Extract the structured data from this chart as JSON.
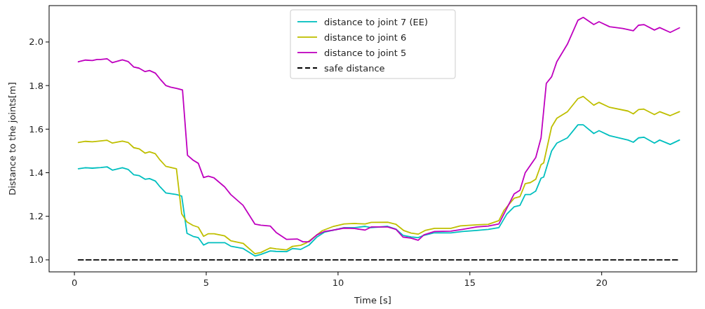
{
  "chart_data": {
    "type": "line",
    "xlabel": "Time [s]",
    "ylabel": "Distance to the joints[m]",
    "xlim": [
      -0.96,
      23.6
    ],
    "ylim": [
      0.945,
      2.167
    ],
    "xticks": [
      0,
      5,
      10,
      15,
      20
    ],
    "yticks": [
      {
        "value": 1.0,
        "label": "1.0"
      },
      {
        "value": 1.2,
        "label": "1.2"
      },
      {
        "value": 1.4,
        "label": "1.4"
      },
      {
        "value": 1.6,
        "label": "1.6"
      },
      {
        "value": 1.8,
        "label": "1.8"
      },
      {
        "value": 2.0,
        "label": "2.0"
      }
    ],
    "grid": false,
    "legend": "top",
    "marker": "none",
    "series": [
      {
        "name": "distance to joint 7 (EE)",
        "color": "#00bfbf",
        "line_style": "solid",
        "x": [
          0.15,
          0.42,
          0.68,
          1.0,
          1.24,
          1.44,
          1.82,
          2.04,
          2.25,
          2.45,
          2.68,
          2.85,
          3.07,
          3.25,
          3.47,
          3.87,
          4.07,
          4.27,
          4.5,
          4.7,
          4.9,
          5.08,
          5.3,
          5.7,
          5.93,
          6.4,
          6.85,
          7.07,
          7.43,
          7.65,
          8.05,
          8.27,
          8.58,
          8.9,
          9.2,
          9.48,
          9.83,
          10.23,
          10.63,
          11.03,
          11.26,
          11.88,
          12.2,
          12.46,
          12.77,
          13.04,
          13.26,
          13.66,
          14.28,
          14.72,
          15.26,
          15.7,
          16.1,
          16.4,
          16.68,
          16.9,
          17.1,
          17.3,
          17.5,
          17.7,
          17.8,
          18.1,
          18.3,
          18.7,
          19.1,
          19.3,
          19.7,
          19.9,
          20.3,
          21.0,
          21.2,
          21.4,
          21.6,
          22.0,
          22.2,
          22.6,
          22.95
        ],
        "values": [
          1.418,
          1.423,
          1.421,
          1.424,
          1.427,
          1.412,
          1.423,
          1.415,
          1.391,
          1.387,
          1.37,
          1.373,
          1.362,
          1.335,
          1.307,
          1.3,
          1.293,
          1.122,
          1.108,
          1.102,
          1.068,
          1.079,
          1.079,
          1.079,
          1.063,
          1.052,
          1.018,
          1.025,
          1.041,
          1.039,
          1.038,
          1.052,
          1.048,
          1.068,
          1.105,
          1.127,
          1.137,
          1.148,
          1.148,
          1.154,
          1.148,
          1.154,
          1.141,
          1.113,
          1.105,
          1.102,
          1.113,
          1.125,
          1.124,
          1.13,
          1.135,
          1.14,
          1.148,
          1.21,
          1.244,
          1.25,
          1.3,
          1.3,
          1.316,
          1.375,
          1.38,
          1.5,
          1.536,
          1.56,
          1.62,
          1.62,
          1.58,
          1.593,
          1.57,
          1.55,
          1.54,
          1.56,
          1.563,
          1.536,
          1.55,
          1.53,
          1.55
        ]
      },
      {
        "name": "distance to joint 6",
        "color": "#bfbf00",
        "line_style": "solid",
        "x": [
          0.15,
          0.42,
          0.68,
          1.0,
          1.24,
          1.44,
          1.82,
          2.04,
          2.25,
          2.45,
          2.68,
          2.85,
          3.07,
          3.25,
          3.47,
          3.87,
          4.07,
          4.27,
          4.5,
          4.7,
          4.9,
          5.08,
          5.3,
          5.7,
          5.93,
          6.4,
          6.85,
          7.07,
          7.43,
          7.65,
          8.05,
          8.27,
          8.58,
          8.8,
          9.05,
          9.4,
          9.83,
          10.23,
          10.63,
          11.03,
          11.26,
          11.88,
          12.2,
          12.5,
          12.77,
          13.04,
          13.3,
          13.66,
          14.28,
          14.64,
          15.26,
          15.7,
          16.1,
          16.3,
          16.68,
          16.9,
          17.1,
          17.3,
          17.5,
          17.7,
          17.8,
          18.1,
          18.3,
          18.7,
          19.1,
          19.3,
          19.7,
          19.9,
          20.3,
          21.0,
          21.2,
          21.4,
          21.6,
          22.0,
          22.2,
          22.6,
          22.95
        ],
        "values": [
          1.539,
          1.544,
          1.542,
          1.546,
          1.549,
          1.536,
          1.545,
          1.539,
          1.515,
          1.51,
          1.49,
          1.496,
          1.487,
          1.458,
          1.429,
          1.418,
          1.211,
          1.174,
          1.158,
          1.15,
          1.108,
          1.12,
          1.12,
          1.11,
          1.088,
          1.076,
          1.028,
          1.034,
          1.055,
          1.051,
          1.046,
          1.062,
          1.067,
          1.078,
          1.1,
          1.134,
          1.154,
          1.165,
          1.167,
          1.165,
          1.172,
          1.173,
          1.163,
          1.134,
          1.123,
          1.118,
          1.135,
          1.145,
          1.145,
          1.156,
          1.161,
          1.163,
          1.18,
          1.228,
          1.283,
          1.29,
          1.35,
          1.355,
          1.37,
          1.437,
          1.445,
          1.61,
          1.65,
          1.68,
          1.74,
          1.75,
          1.71,
          1.723,
          1.7,
          1.683,
          1.67,
          1.69,
          1.692,
          1.667,
          1.68,
          1.662,
          1.68
        ]
      },
      {
        "name": "distance to joint 5",
        "color": "#bf00bf",
        "line_style": "solid",
        "x": [
          0.15,
          0.42,
          0.68,
          0.86,
          1.0,
          1.24,
          1.44,
          1.82,
          2.04,
          2.25,
          2.45,
          2.68,
          2.85,
          3.07,
          3.25,
          3.47,
          3.65,
          3.87,
          4.1,
          4.29,
          4.5,
          4.7,
          4.9,
          5.08,
          5.3,
          5.7,
          5.93,
          6.4,
          6.85,
          7.07,
          7.43,
          7.65,
          8.05,
          8.45,
          8.67,
          8.9,
          9.2,
          9.48,
          9.83,
          10.23,
          10.63,
          11.03,
          11.26,
          11.88,
          12.2,
          12.46,
          12.77,
          13.04,
          13.26,
          13.66,
          14.28,
          14.72,
          15.26,
          15.7,
          16.1,
          16.68,
          16.9,
          17.1,
          17.5,
          17.7,
          17.9,
          18.1,
          18.3,
          18.7,
          19.1,
          19.3,
          19.7,
          19.9,
          20.3,
          20.8,
          21.2,
          21.4,
          21.6,
          22.0,
          22.2,
          22.6,
          22.95
        ],
        "values": [
          1.909,
          1.917,
          1.915,
          1.92,
          1.92,
          1.923,
          1.905,
          1.918,
          1.91,
          1.885,
          1.88,
          1.864,
          1.869,
          1.857,
          1.83,
          1.8,
          1.793,
          1.787,
          1.78,
          1.48,
          1.458,
          1.443,
          1.378,
          1.384,
          1.376,
          1.335,
          1.3,
          1.25,
          1.164,
          1.159,
          1.155,
          1.126,
          1.094,
          1.096,
          1.083,
          1.083,
          1.115,
          1.13,
          1.137,
          1.146,
          1.144,
          1.137,
          1.151,
          1.151,
          1.14,
          1.105,
          1.1,
          1.09,
          1.115,
          1.13,
          1.132,
          1.14,
          1.151,
          1.155,
          1.165,
          1.303,
          1.32,
          1.4,
          1.47,
          1.56,
          1.81,
          1.84,
          1.91,
          1.99,
          2.1,
          2.113,
          2.08,
          2.093,
          2.07,
          2.062,
          2.052,
          2.077,
          2.08,
          2.055,
          2.066,
          2.044,
          2.065
        ]
      },
      {
        "name": "safe distance",
        "color": "#000000",
        "line_style": "dashed",
        "x": [
          0.15,
          22.95
        ],
        "values": [
          1.0,
          1.0
        ]
      }
    ]
  }
}
